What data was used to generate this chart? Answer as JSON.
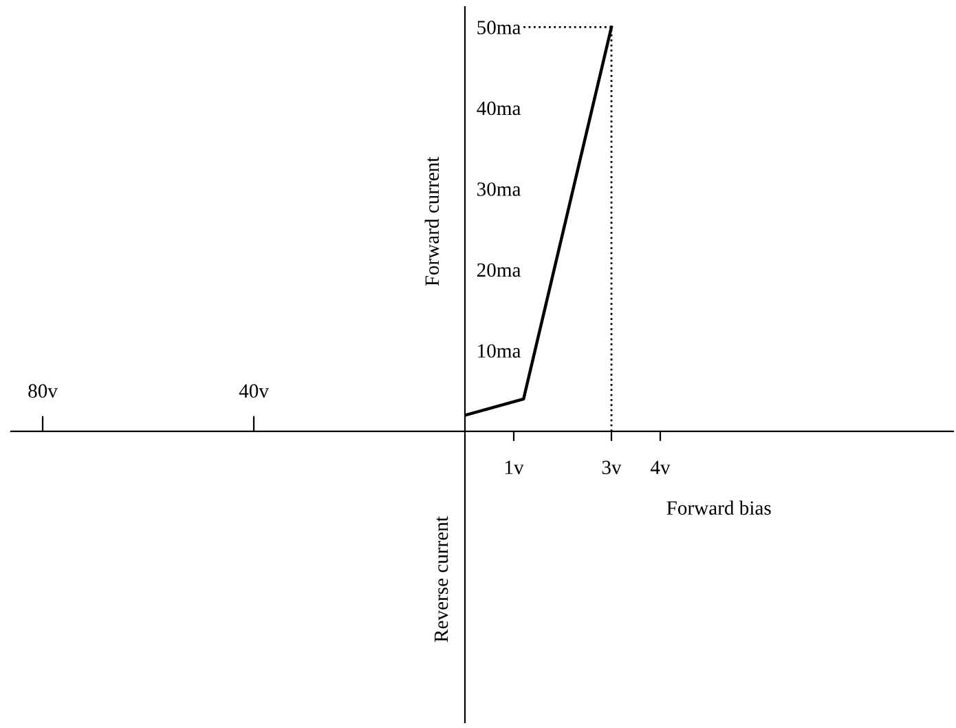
{
  "chart_data": [
    {
      "type": "line",
      "xlim": [
        -86,
        0
      ],
      "ylim": [
        -36,
        52.5
      ],
      "xticks": [
        {
          "value": -80,
          "label": "80v"
        },
        {
          "value": -40,
          "label": "40v"
        }
      ],
      "tick_labels": "x"
    },
    {
      "type": "line",
      "xlabel": "Forward bias",
      "ylabel": "Forward current",
      "annotations": [
        "Reverse current"
      ],
      "x": [
        0,
        1.2,
        3
      ],
      "values": [
        2,
        4,
        50
      ],
      "color": "#000000",
      "xlim": [
        0,
        10
      ],
      "ylim": [
        -36,
        52.5
      ],
      "xticks": [
        {
          "value": 1,
          "label": "1v"
        },
        {
          "value": 3,
          "label": "3v"
        },
        {
          "value": 4,
          "label": "4v"
        }
      ],
      "yticks": [
        {
          "value": 10,
          "label": "10ma"
        },
        {
          "value": 20,
          "label": "20ma"
        },
        {
          "value": 30,
          "label": "30ma"
        },
        {
          "value": 40,
          "label": "40ma"
        },
        {
          "value": 50,
          "label": "50ma"
        }
      ],
      "ref_lines": [
        {
          "axis": "x",
          "value": 3,
          "line_style": "dotted"
        },
        {
          "axis": "y",
          "value": 50,
          "line_style": "dotted"
        }
      ],
      "marker": "none",
      "line_style": "solid"
    }
  ]
}
